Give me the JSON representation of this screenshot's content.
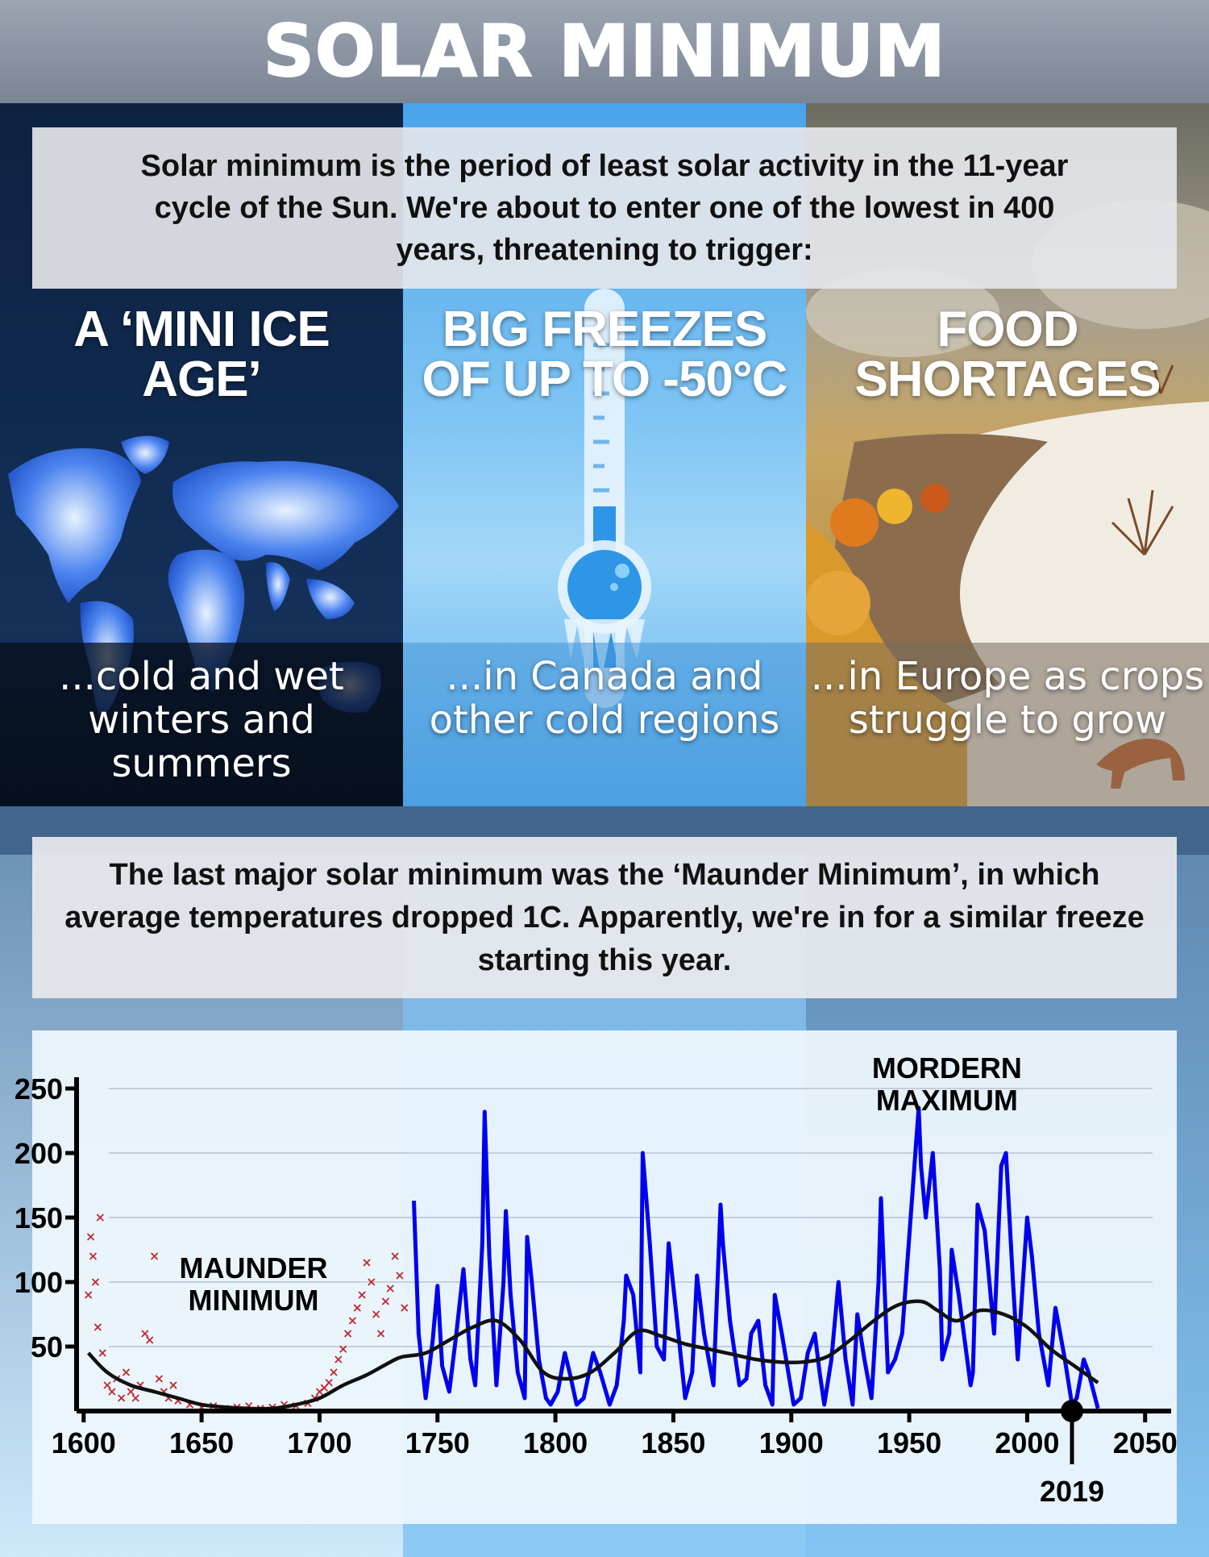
{
  "header": {
    "title": "SOLAR MINIMUM"
  },
  "intro": {
    "text": "Solar minimum is the period of least solar activity in the 11-year cycle of the Sun. We're about to enter one of the lowest in 400 years, threatening to trigger:"
  },
  "columns": [
    {
      "title": "A ‘MINI ICE AGE’",
      "caption": "...cold and wet winters and summers",
      "icon": "world-map-icon"
    },
    {
      "title": "BIG FREEZES OF UP TO -50°C",
      "caption": "...in Canada and other cold regions",
      "icon": "thermometer-icon"
    },
    {
      "title": "FOOD SHORTAGES",
      "caption": "...in Europe as crops struggle to grow",
      "icon": "autumn-landscape-fox-icon"
    }
  ],
  "info": {
    "text": "The last major solar minimum was the ‘Maunder Minimum’, in which average temperatures dropped 1C. Apparently, we're in for a similar freeze starting this year."
  },
  "colors": {
    "telescopic_obs": "#c0282d",
    "monthly_series": "#0000ee",
    "smoothed": "#111111"
  },
  "chart_data": {
    "type": "line",
    "xlim": [
      1597,
      2060
    ],
    "ylim": [
      0,
      270
    ],
    "x_ticks": [
      1600,
      1650,
      1700,
      1750,
      1800,
      1850,
      1900,
      1950,
      2000,
      2050
    ],
    "y_ticks": [
      50,
      100,
      150,
      200,
      250
    ],
    "grid": "horizontal",
    "annotations": [
      {
        "text": "MAUNDER MINIMUM",
        "x": 1672,
        "y": 103
      },
      {
        "text": "MORDERN MAXIMUM",
        "x": 1966,
        "y": 258
      }
    ],
    "marker": {
      "label": "2019",
      "x": 2019,
      "y": 0
    },
    "series": [
      {
        "style": "x-markers",
        "x": [
          1602,
          1603,
          1604,
          1605,
          1606,
          1607,
          1608,
          1610,
          1612,
          1614,
          1616,
          1618,
          1620,
          1622,
          1624,
          1626,
          1628,
          1630,
          1632,
          1634,
          1636,
          1638,
          1640,
          1645,
          1650,
          1655,
          1660,
          1665,
          1670,
          1675,
          1680,
          1685,
          1690,
          1695,
          1698,
          1700,
          1702,
          1704,
          1706,
          1708,
          1710,
          1712,
          1714,
          1716,
          1718,
          1720,
          1722,
          1724,
          1726,
          1728,
          1730,
          1732,
          1734,
          1736
        ],
        "y": [
          90,
          135,
          120,
          100,
          65,
          150,
          45,
          20,
          15,
          25,
          10,
          30,
          15,
          10,
          20,
          60,
          55,
          120,
          25,
          15,
          10,
          20,
          8,
          5,
          3,
          4,
          2,
          3,
          4,
          2,
          3,
          5,
          4,
          6,
          10,
          15,
          18,
          22,
          30,
          40,
          48,
          60,
          70,
          80,
          90,
          115,
          100,
          75,
          60,
          85,
          95,
          120,
          105,
          80
        ]
      },
      {
        "style": "line",
        "x": [
          1740,
          1742,
          1745,
          1748,
          1750,
          1752,
          1755,
          1758,
          1761,
          1764,
          1766,
          1769,
          1770,
          1772,
          1775,
          1778,
          1779,
          1781,
          1784,
          1787,
          1788,
          1790,
          1793,
          1796,
          1798,
          1801,
          1804,
          1806,
          1809,
          1812,
          1816,
          1819,
          1823,
          1826,
          1829,
          1830,
          1833,
          1836,
          1837,
          1840,
          1843,
          1846,
          1848,
          1851,
          1855,
          1858,
          1860,
          1863,
          1867,
          1870,
          1871,
          1874,
          1878,
          1881,
          1883,
          1886,
          1889,
          1892,
          1893,
          1896,
          1901,
          1904,
          1907,
          1910,
          1912,
          1914,
          1917,
          1920,
          1923,
          1926,
          1928,
          1931,
          1934,
          1937,
          1938,
          1941,
          1944,
          1947,
          1954,
          1955,
          1957,
          1960,
          1963,
          1964,
          1967,
          1968,
          1971,
          1976,
          1977,
          1979,
          1982,
          1986,
          1989,
          1991,
          1994,
          1996,
          2000,
          2002,
          2005,
          2008,
          2009,
          2012,
          2014,
          2016,
          2019,
          2021,
          2024,
          2026,
          2030
        ],
        "y": [
          163,
          60,
          10,
          55,
          97,
          35,
          15,
          60,
          110,
          40,
          20,
          130,
          232,
          120,
          20,
          100,
          155,
          90,
          30,
          10,
          135,
          100,
          40,
          10,
          5,
          15,
          45,
          30,
          5,
          10,
          45,
          30,
          5,
          20,
          70,
          105,
          90,
          30,
          200,
          130,
          50,
          40,
          130,
          80,
          10,
          30,
          105,
          60,
          20,
          160,
          130,
          70,
          20,
          25,
          60,
          70,
          20,
          5,
          90,
          60,
          5,
          10,
          45,
          60,
          30,
          5,
          40,
          100,
          40,
          5,
          75,
          40,
          10,
          100,
          165,
          30,
          40,
          60,
          235,
          190,
          150,
          200,
          110,
          40,
          60,
          125,
          90,
          20,
          30,
          160,
          140,
          60,
          190,
          200,
          100,
          40,
          150,
          120,
          60,
          30,
          20,
          80,
          60,
          40,
          5,
          10,
          40,
          30,
          2
        ]
      },
      {
        "style": "smooth-line",
        "x": [
          1602,
          1610,
          1620,
          1630,
          1640,
          1650,
          1660,
          1670,
          1680,
          1690,
          1700,
          1710,
          1720,
          1730,
          1735,
          1745,
          1755,
          1765,
          1775,
          1785,
          1795,
          1805,
          1815,
          1825,
          1835,
          1845,
          1855,
          1865,
          1875,
          1885,
          1895,
          1905,
          1915,
          1925,
          1935,
          1945,
          1955,
          1962,
          1970,
          1980,
          1990,
          2000,
          2010,
          2020,
          2030
        ],
        "y": [
          45,
          30,
          20,
          15,
          10,
          5,
          3,
          2,
          2,
          5,
          10,
          20,
          28,
          38,
          42,
          45,
          55,
          65,
          70,
          55,
          30,
          25,
          30,
          45,
          62,
          58,
          52,
          48,
          44,
          40,
          38,
          38,
          42,
          55,
          70,
          82,
          85,
          78,
          70,
          78,
          75,
          65,
          48,
          35,
          22
        ]
      }
    ]
  }
}
